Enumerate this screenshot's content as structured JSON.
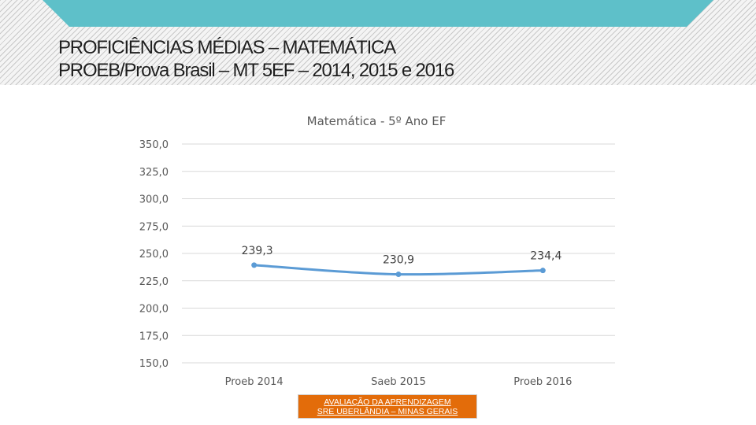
{
  "header": {
    "title_line1": "PROFICIÊNCIAS MÉDIAS – MATEMÁTICA",
    "title_line2": "PROEB/Prova Brasil – MT 5EF – 2014, 2015 e 2016"
  },
  "chart_data": {
    "type": "line",
    "title": "Matemática - 5º Ano EF",
    "categories": [
      "Proeb 2014",
      "Saeb 2015",
      "Proeb 2016"
    ],
    "series": [
      {
        "values": [
          239.3,
          230.9,
          234.4
        ],
        "labels": [
          "239,3",
          "230,9",
          "234,4"
        ],
        "color": "#5b9bd5"
      }
    ],
    "y_ticks": [
      350,
      325,
      300,
      275,
      250,
      225,
      200,
      175,
      150
    ],
    "y_tick_labels": [
      "350,0",
      "325,0",
      "300,0",
      "275,0",
      "250,0",
      "225,0",
      "200,0",
      "175,0",
      "150,0"
    ],
    "ylim": [
      150,
      350
    ],
    "grid": true,
    "legend": "none"
  },
  "footer": {
    "line1": "AVALIAÇÃO DA APRENDIZAGEM",
    "line2": "SRE UBERLÂNDIA – MINAS GERAIS",
    "color": "#e36c0a"
  }
}
